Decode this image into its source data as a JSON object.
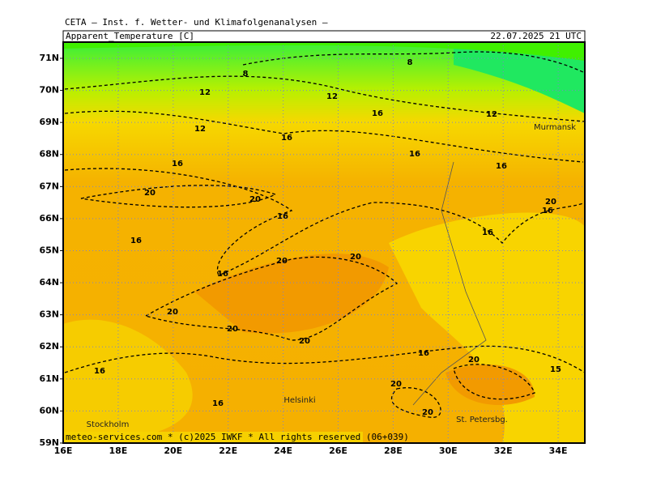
{
  "header": {
    "source": "CETA — Inst. f. Wetter- und Klimafolgenanalysen —",
    "title": "Apparent_Temperature [C]",
    "date": "22.07.2025 21 UTC"
  },
  "lat_labels": [
    "71N",
    "70N",
    "69N",
    "68N",
    "67N",
    "66N",
    "65N",
    "64N",
    "63N",
    "62N",
    "61N",
    "60N",
    "59N"
  ],
  "lon_labels": [
    "16E",
    "18E",
    "20E",
    "22E",
    "24E",
    "26E",
    "28E",
    "30E",
    "32E",
    "34E"
  ],
  "contour_labels": [
    8,
    8,
    12,
    12,
    12,
    12,
    16,
    16,
    16,
    16,
    16,
    20,
    20,
    16,
    20,
    16,
    16,
    16,
    20,
    20,
    16,
    20,
    20,
    20,
    16,
    20,
    16,
    15,
    20,
    16,
    20
  ],
  "place_labels": [
    "Murmansk",
    "Helsinki",
    "Stockholm",
    "St. Petersbg."
  ],
  "footer": "meteo-services.com * (c)2025 IWKF * All rights reserved (06+039)"
}
